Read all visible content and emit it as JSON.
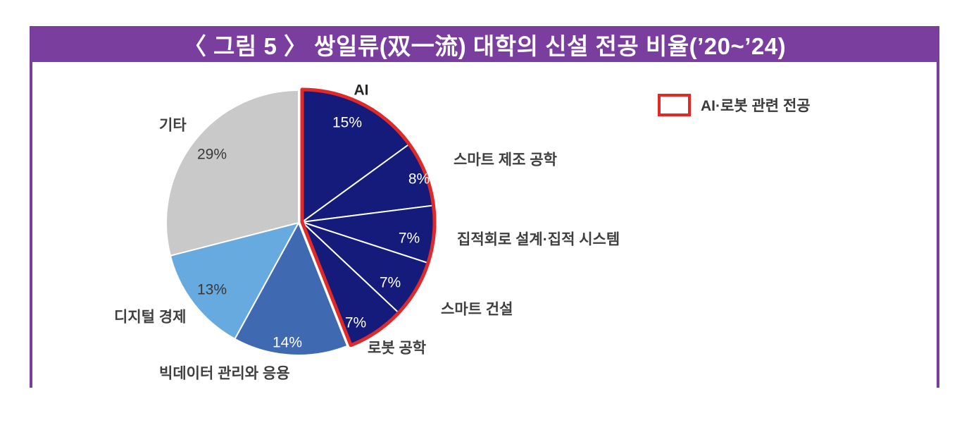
{
  "figure": {
    "title": "〈 그림 5 〉 쌍일류(双一流) 대학의 신설 전공 비율(’20~’24)",
    "accent_color": "#7A3F9E"
  },
  "legend": {
    "label": "AI·로봇 관련 전공",
    "box_border_color": "#E02A2A"
  },
  "chart_data": {
    "type": "pie",
    "title": "쌍일류(双一流) 대학의 신설 전공 비율(’20~’24)",
    "start_angle_deg": 0,
    "direction": "clockwise",
    "unit": "%",
    "highlight_group": {
      "label": "AI·로봇 관련 전공",
      "outline_color": "#E02A2A",
      "segment_indices": [
        0,
        1,
        2,
        3,
        4
      ]
    },
    "segments": [
      {
        "label": "AI",
        "value": 15,
        "value_label": "15%",
        "color": "#141B7A",
        "in_highlight_group": true
      },
      {
        "label": "스마트 제조 공학",
        "value": 8,
        "value_label": "8%",
        "color": "#141B7A",
        "in_highlight_group": true
      },
      {
        "label": "집적회로 설계·집적 시스템",
        "value": 7,
        "value_label": "7%",
        "color": "#141B7A",
        "in_highlight_group": true
      },
      {
        "label": "스마트 건설",
        "value": 7,
        "value_label": "7%",
        "color": "#141B7A",
        "in_highlight_group": true
      },
      {
        "label": "로봇 공학",
        "value": 7,
        "value_label": "7%",
        "color": "#141B7A",
        "in_highlight_group": true
      },
      {
        "label": "빅데이터 관리와 응용",
        "value": 14,
        "value_label": "14%",
        "color": "#3F69B1",
        "in_highlight_group": false
      },
      {
        "label": "디지털 경제",
        "value": 13,
        "value_label": "13%",
        "color": "#66AADF",
        "in_highlight_group": false
      },
      {
        "label": "기타",
        "value": 29,
        "value_label": "29%",
        "color": "#C9C9C9",
        "in_highlight_group": false
      }
    ]
  }
}
